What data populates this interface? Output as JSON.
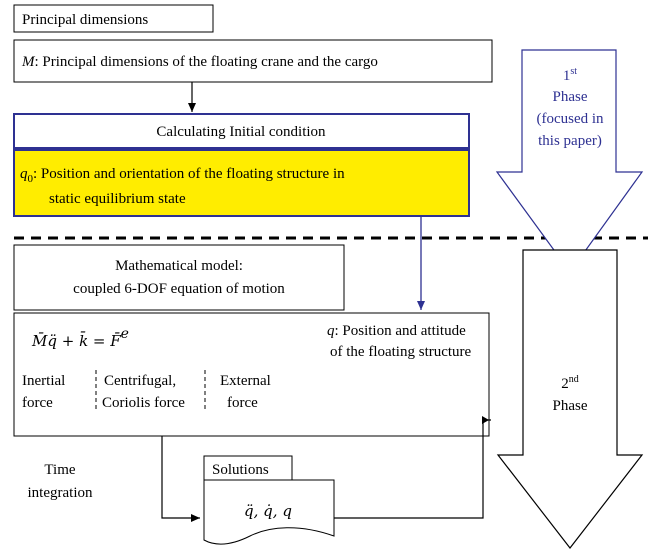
{
  "boxes": {
    "principal_title": "Principal dimensions",
    "principal": {
      "symbol": "M",
      "text": ": Principal dimensions of the floating crane and the cargo"
    },
    "initial_title": "Calculating Initial condition",
    "initial": {
      "symbol": "q",
      "subscript": "0",
      "line1": ": Position and orientation of the floating structure in",
      "line2": "static equilibrium state"
    },
    "model_title": [
      "Mathematical model:",
      "coupled 6-DOF equation of motion"
    ],
    "model": {
      "equation": "M̄q̈ + k̄ = F̄",
      "equation_sup": "e",
      "q_symbol": "q",
      "q_line1": ": Position and attitude",
      "q_line2": "of the floating structure",
      "terms": [
        [
          "Inertial",
          "force"
        ],
        [
          "Centrifugal,",
          "Coriolis force"
        ],
        [
          "External",
          "force"
        ]
      ]
    },
    "solutions_title": "Solutions",
    "solutions": "q̈, q̇, q"
  },
  "edges": {
    "time_integration": [
      "Time",
      "integration"
    ]
  },
  "phases": [
    {
      "number": "1",
      "suffix": "st",
      "lines": [
        "Phase",
        "(focused in",
        "this paper)"
      ]
    },
    {
      "number": "2",
      "suffix": "nd",
      "lines": [
        "Phase"
      ]
    }
  ]
}
